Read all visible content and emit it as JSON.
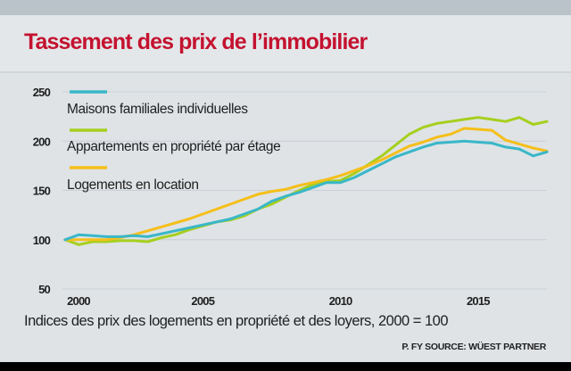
{
  "header": {
    "title": "Tassement des prix de l’immobilier"
  },
  "chart_data": {
    "type": "line",
    "title": "Tassement des prix de l’immobilier",
    "subtitle": "Indices des prix des logements en propriété et des loyers, 2000 = 100",
    "source": "P. FY SOURCE: WÜEST PARTNER",
    "xlabel": "",
    "ylabel": "",
    "xlim": [
      2000,
      2017.5
    ],
    "ylim": [
      50,
      250
    ],
    "grid": true,
    "legend_position": "top-left",
    "x_ticks": [
      "2000",
      "2005",
      "2010",
      "2015"
    ],
    "x_tick_values": [
      2000,
      2005,
      2010,
      2015
    ],
    "y_ticks": [
      "250",
      "200",
      "150",
      "100",
      "50"
    ],
    "y_tick_values": [
      250,
      200,
      150,
      100,
      50
    ],
    "x": [
      2000,
      2000.5,
      2001,
      2001.5,
      2002,
      2002.5,
      2003,
      2003.5,
      2004,
      2004.5,
      2005,
      2005.5,
      2006,
      2006.5,
      2007,
      2007.5,
      2008,
      2008.5,
      2009,
      2009.5,
      2010,
      2010.5,
      2011,
      2011.5,
      2012,
      2012.5,
      2013,
      2013.5,
      2014,
      2014.5,
      2015,
      2015.5,
      2016,
      2016.5,
      2017,
      2017.5
    ],
    "series": [
      {
        "name": "Maisons familiales individuelles",
        "color": "#3ab7c8",
        "values": [
          100,
          105,
          104,
          103,
          103,
          104,
          103,
          106,
          109,
          112,
          115,
          118,
          121,
          126,
          131,
          139,
          144,
          148,
          153,
          158,
          158,
          163,
          170,
          177,
          184,
          189,
          194,
          198,
          199,
          200,
          199,
          198,
          194,
          192,
          185,
          189
        ]
      },
      {
        "name": "Appartements en propriété par étage",
        "color": "#a6cf1e",
        "values": [
          100,
          95,
          98,
          98,
          99,
          99,
          98,
          102,
          105,
          110,
          114,
          118,
          120,
          124,
          131,
          136,
          143,
          150,
          156,
          159,
          160,
          167,
          176,
          185,
          196,
          207,
          214,
          218,
          220,
          222,
          224,
          222,
          220,
          224,
          217,
          220
        ]
      },
      {
        "name": "Logements en location",
        "color": "#f5bf1a",
        "values": [
          100,
          100,
          100,
          100,
          102,
          105,
          109,
          113,
          117,
          121,
          126,
          131,
          136,
          141,
          146,
          149,
          151,
          155,
          158,
          161,
          165,
          170,
          175,
          181,
          188,
          195,
          199,
          204,
          207,
          213,
          212,
          211,
          201,
          197,
          193,
          190
        ]
      }
    ]
  }
}
